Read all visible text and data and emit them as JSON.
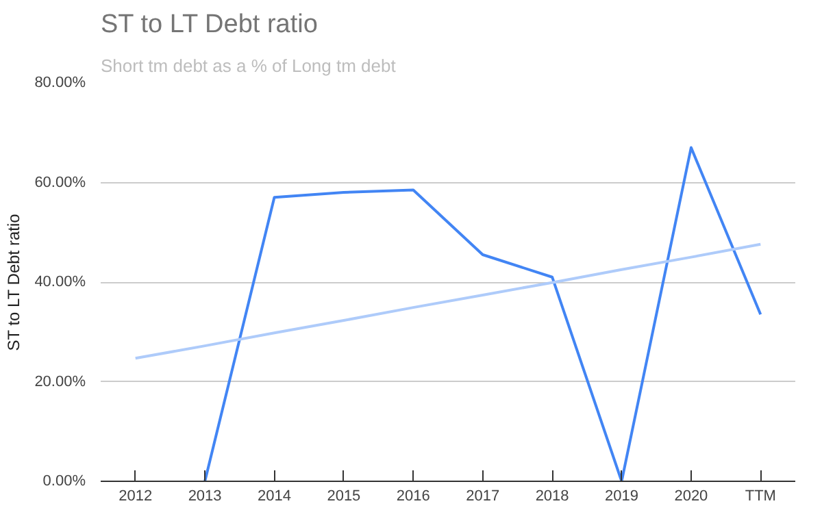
{
  "chart_data": {
    "type": "line",
    "title": "ST to LT Debt ratio",
    "subtitle": "Short tm debt as a % of Long tm debt",
    "ylabel": "ST to LT Debt ratio",
    "categories": [
      "2012",
      "2013",
      "2014",
      "2015",
      "2016",
      "2017",
      "2018",
      "2019",
      "2020",
      "TTM"
    ],
    "series": [
      {
        "color": "#4285f4",
        "values": [
          null,
          0,
          57,
          58,
          58.5,
          45.5,
          41,
          0,
          67,
          33.5
        ]
      },
      {
        "type": "line",
        "color": "#aecbfa",
        "values": [
          24.7,
          27.2,
          29.8,
          32.3,
          34.9,
          37.4,
          39.9,
          42.5,
          45.0,
          47.6
        ]
      }
    ],
    "ylim": [
      0,
      80
    ],
    "yticks": [
      {
        "value": 0,
        "label": "0.00%"
      },
      {
        "value": 20,
        "label": "20.00%"
      },
      {
        "value": 40,
        "label": "40.00%"
      },
      {
        "value": 60,
        "label": "60.00%"
      },
      {
        "value": 80,
        "label": "80.00%"
      }
    ],
    "grid": "y"
  }
}
